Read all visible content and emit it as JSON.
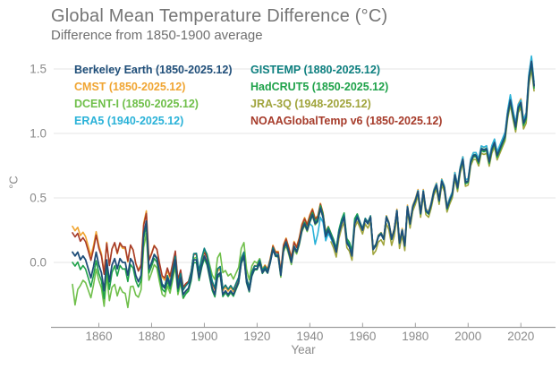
{
  "header": {
    "title": "Global Mean Temperature Difference (°C)",
    "subtitle": "Difference from 1850-1900 average"
  },
  "colors": {
    "background": "#ffffff",
    "title_text": "#757575",
    "subtitle_text": "#6f6f6f",
    "tick_text": "#8a8a8a",
    "gridline": "#e4e4e4",
    "axis_line": "#9e9e9e"
  },
  "chart_data": {
    "type": "line",
    "title": "Global Mean Temperature Difference (°C)",
    "subtitle": "Difference from 1850-1900 average",
    "xlabel": "Year",
    "ylabel": "°C",
    "x_range": [
      1850,
      2025
    ],
    "ylim": [
      -0.5,
      1.65
    ],
    "xticks": [
      1860,
      1880,
      1900,
      1920,
      1940,
      1960,
      1980,
      2000,
      2020
    ],
    "yticks": [
      0.0,
      0.5,
      1.0,
      1.5
    ],
    "grid": "horizontal",
    "legend_position": "top-left-two-columns-colored-text",
    "note": "Eight nearly-overlapping annual anomaly series; each series = consensus_values plus linearly interpolated delta_keyframes, °C relative to 1850-1900 average.",
    "years": {
      "start": 1850,
      "end": 2025
    },
    "consensus_values": [
      0.08,
      0.05,
      0.08,
      0.02,
      0.05,
      0.02,
      -0.05,
      -0.12,
      -0.03,
      0.08,
      -0.02,
      -0.08,
      -0.22,
      0.02,
      -0.15,
      -0.02,
      0.03,
      -0.05,
      0.03,
      0.0,
      0.0,
      -0.1,
      0.03,
      0.0,
      -0.1,
      -0.15,
      -0.1,
      0.22,
      0.32,
      -0.05,
      0.0,
      0.06,
      0.03,
      -0.08,
      -0.18,
      -0.2,
      -0.12,
      -0.18,
      -0.08,
      0.02,
      -0.2,
      -0.12,
      -0.25,
      -0.22,
      -0.2,
      -0.12,
      0.02,
      0.02,
      -0.12,
      -0.02,
      0.05,
      0.0,
      -0.1,
      -0.2,
      -0.25,
      -0.1,
      -0.08,
      -0.25,
      -0.22,
      -0.25,
      -0.22,
      -0.25,
      -0.2,
      -0.15,
      0.0,
      0.05,
      -0.15,
      -0.22,
      -0.1,
      -0.05,
      -0.05,
      0.0,
      -0.08,
      -0.05,
      -0.08,
      0.0,
      0.1,
      0.05,
      0.05,
      -0.1,
      0.1,
      0.15,
      0.08,
      0.0,
      0.12,
      0.08,
      0.15,
      0.25,
      0.3,
      0.25,
      0.32,
      0.37,
      0.3,
      0.32,
      0.42,
      0.35,
      0.2,
      0.25,
      0.2,
      0.15,
      0.08,
      0.22,
      0.3,
      0.35,
      0.15,
      0.12,
      0.05,
      0.3,
      0.35,
      0.3,
      0.25,
      0.33,
      0.3,
      0.35,
      0.1,
      0.13,
      0.2,
      0.22,
      0.18,
      0.35,
      0.3,
      0.18,
      0.25,
      0.4,
      0.15,
      0.25,
      0.13,
      0.43,
      0.3,
      0.43,
      0.48,
      0.55,
      0.38,
      0.55,
      0.4,
      0.38,
      0.45,
      0.55,
      0.6,
      0.48,
      0.63,
      0.58,
      0.42,
      0.48,
      0.53,
      0.68,
      0.58,
      0.72,
      0.8,
      0.62,
      0.63,
      0.78,
      0.83,
      0.83,
      0.78,
      0.88,
      0.87,
      0.88,
      0.78,
      0.88,
      0.93,
      0.83,
      0.88,
      0.93,
      0.98,
      1.15,
      1.26,
      1.15,
      1.05,
      1.2,
      1.24,
      1.08,
      1.13,
      1.42,
      1.56,
      1.37
    ],
    "series": [
      {
        "name": "Berkeley Earth",
        "label": "Berkeley Earth (1850-2025.12)",
        "color": "#1f4e79",
        "start_year": 1850,
        "delta_keyframes": [
          [
            1850,
            0.0
          ]
        ]
      },
      {
        "name": "CMST",
        "label": "CMST (1850-2025.12)",
        "color": "#f0a532",
        "start_year": 1850,
        "delta_keyframes": [
          [
            1850,
            0.2
          ],
          [
            1855,
            0.18
          ],
          [
            1866,
            0.12
          ],
          [
            1878,
            0.08
          ],
          [
            1890,
            0.05
          ],
          [
            1900,
            0.04
          ],
          [
            1915,
            0.02
          ],
          [
            1940,
            0.05
          ],
          [
            1950,
            0.02
          ],
          [
            1960,
            0.01
          ],
          [
            2000,
            0.02
          ],
          [
            2023,
            0.03
          ],
          [
            2025,
            0.03
          ]
        ]
      },
      {
        "name": "DCENT-I",
        "label": "DCENT-I (1850-2025.12)",
        "color": "#6fbf4a",
        "start_year": 1850,
        "delta_keyframes": [
          [
            1850,
            -0.25
          ],
          [
            1851,
            -0.38
          ],
          [
            1853,
            -0.2
          ],
          [
            1860,
            -0.12
          ],
          [
            1863,
            -0.12
          ],
          [
            1866,
            -0.2
          ],
          [
            1871,
            -0.25
          ],
          [
            1875,
            -0.12
          ],
          [
            1880,
            -0.08
          ],
          [
            1890,
            -0.05
          ],
          [
            1900,
            0.05
          ],
          [
            1907,
            0.17
          ],
          [
            1911,
            0.12
          ],
          [
            1916,
            0.1
          ],
          [
            1921,
            0.03
          ],
          [
            1930,
            -0.02
          ],
          [
            1950,
            0.0
          ],
          [
            2025,
            0.0
          ]
        ]
      },
      {
        "name": "ERA5",
        "label": "ERA5 (1940-2025.12)",
        "color": "#2ab2d8",
        "start_year": 1940,
        "delta_keyframes": [
          [
            1940,
            -0.02
          ],
          [
            1942,
            -0.16
          ],
          [
            1943,
            -0.1
          ],
          [
            1945,
            -0.04
          ],
          [
            1950,
            0.0
          ],
          [
            1970,
            0.0
          ],
          [
            2015,
            0.03
          ],
          [
            2016,
            0.04
          ],
          [
            2020,
            0.02
          ],
          [
            2024,
            0.04
          ],
          [
            2025,
            0.03
          ]
        ]
      },
      {
        "name": "GISTEMP",
        "label": "GISTEMP (1880-2025.12)",
        "color": "#0d7f7f",
        "start_year": 1880,
        "delta_keyframes": [
          [
            1880,
            0.0
          ],
          [
            1890,
            0.03
          ],
          [
            1900,
            0.06
          ],
          [
            1910,
            0.04
          ],
          [
            1920,
            0.02
          ],
          [
            1940,
            0.0
          ],
          [
            1950,
            0.02
          ],
          [
            1980,
            0.0
          ],
          [
            2025,
            0.01
          ]
        ]
      },
      {
        "name": "HadCRUT5",
        "label": "HadCRUT5 (1850-2025.12)",
        "color": "#1fa24a",
        "start_year": 1850,
        "delta_keyframes": [
          [
            1850,
            -0.08
          ],
          [
            1870,
            -0.05
          ],
          [
            1880,
            -0.03
          ],
          [
            1900,
            -0.02
          ],
          [
            1930,
            0.0
          ],
          [
            1957,
            0.04
          ],
          [
            1960,
            0.0
          ],
          [
            2000,
            -0.01
          ],
          [
            2025,
            -0.02
          ]
        ]
      },
      {
        "name": "JRA-3Q",
        "label": "JRA-3Q (1948-2025.12)",
        "color": "#a0a43c",
        "start_year": 1948,
        "delta_keyframes": [
          [
            1948,
            -0.04
          ],
          [
            1960,
            -0.03
          ],
          [
            1970,
            -0.05
          ],
          [
            1980,
            -0.03
          ],
          [
            2000,
            -0.03
          ],
          [
            2020,
            -0.04
          ],
          [
            2024,
            -0.06
          ],
          [
            2025,
            -0.04
          ]
        ]
      },
      {
        "name": "NOAAGlobalTemp v6",
        "label": "NOAAGlobalTemp v6 (1850-2025.12)",
        "color": "#a63b2a",
        "start_year": 1850,
        "delta_keyframes": [
          [
            1850,
            0.15
          ],
          [
            1860,
            0.13
          ],
          [
            1870,
            0.12
          ],
          [
            1878,
            0.06
          ],
          [
            1885,
            0.08
          ],
          [
            1895,
            0.05
          ],
          [
            1900,
            0.03
          ],
          [
            1905,
            0.05
          ],
          [
            1920,
            0.02
          ],
          [
            1940,
            0.04
          ],
          [
            1945,
            0.03
          ],
          [
            1960,
            0.0
          ],
          [
            2000,
            0.0
          ],
          [
            2025,
            -0.01
          ]
        ]
      }
    ],
    "draw_order": [
      "CMST",
      "NOAAGlobalTemp v6",
      "DCENT-I",
      "JRA-3Q",
      "HadCRUT5",
      "GISTEMP",
      "ERA5",
      "Berkeley Earth"
    ]
  }
}
